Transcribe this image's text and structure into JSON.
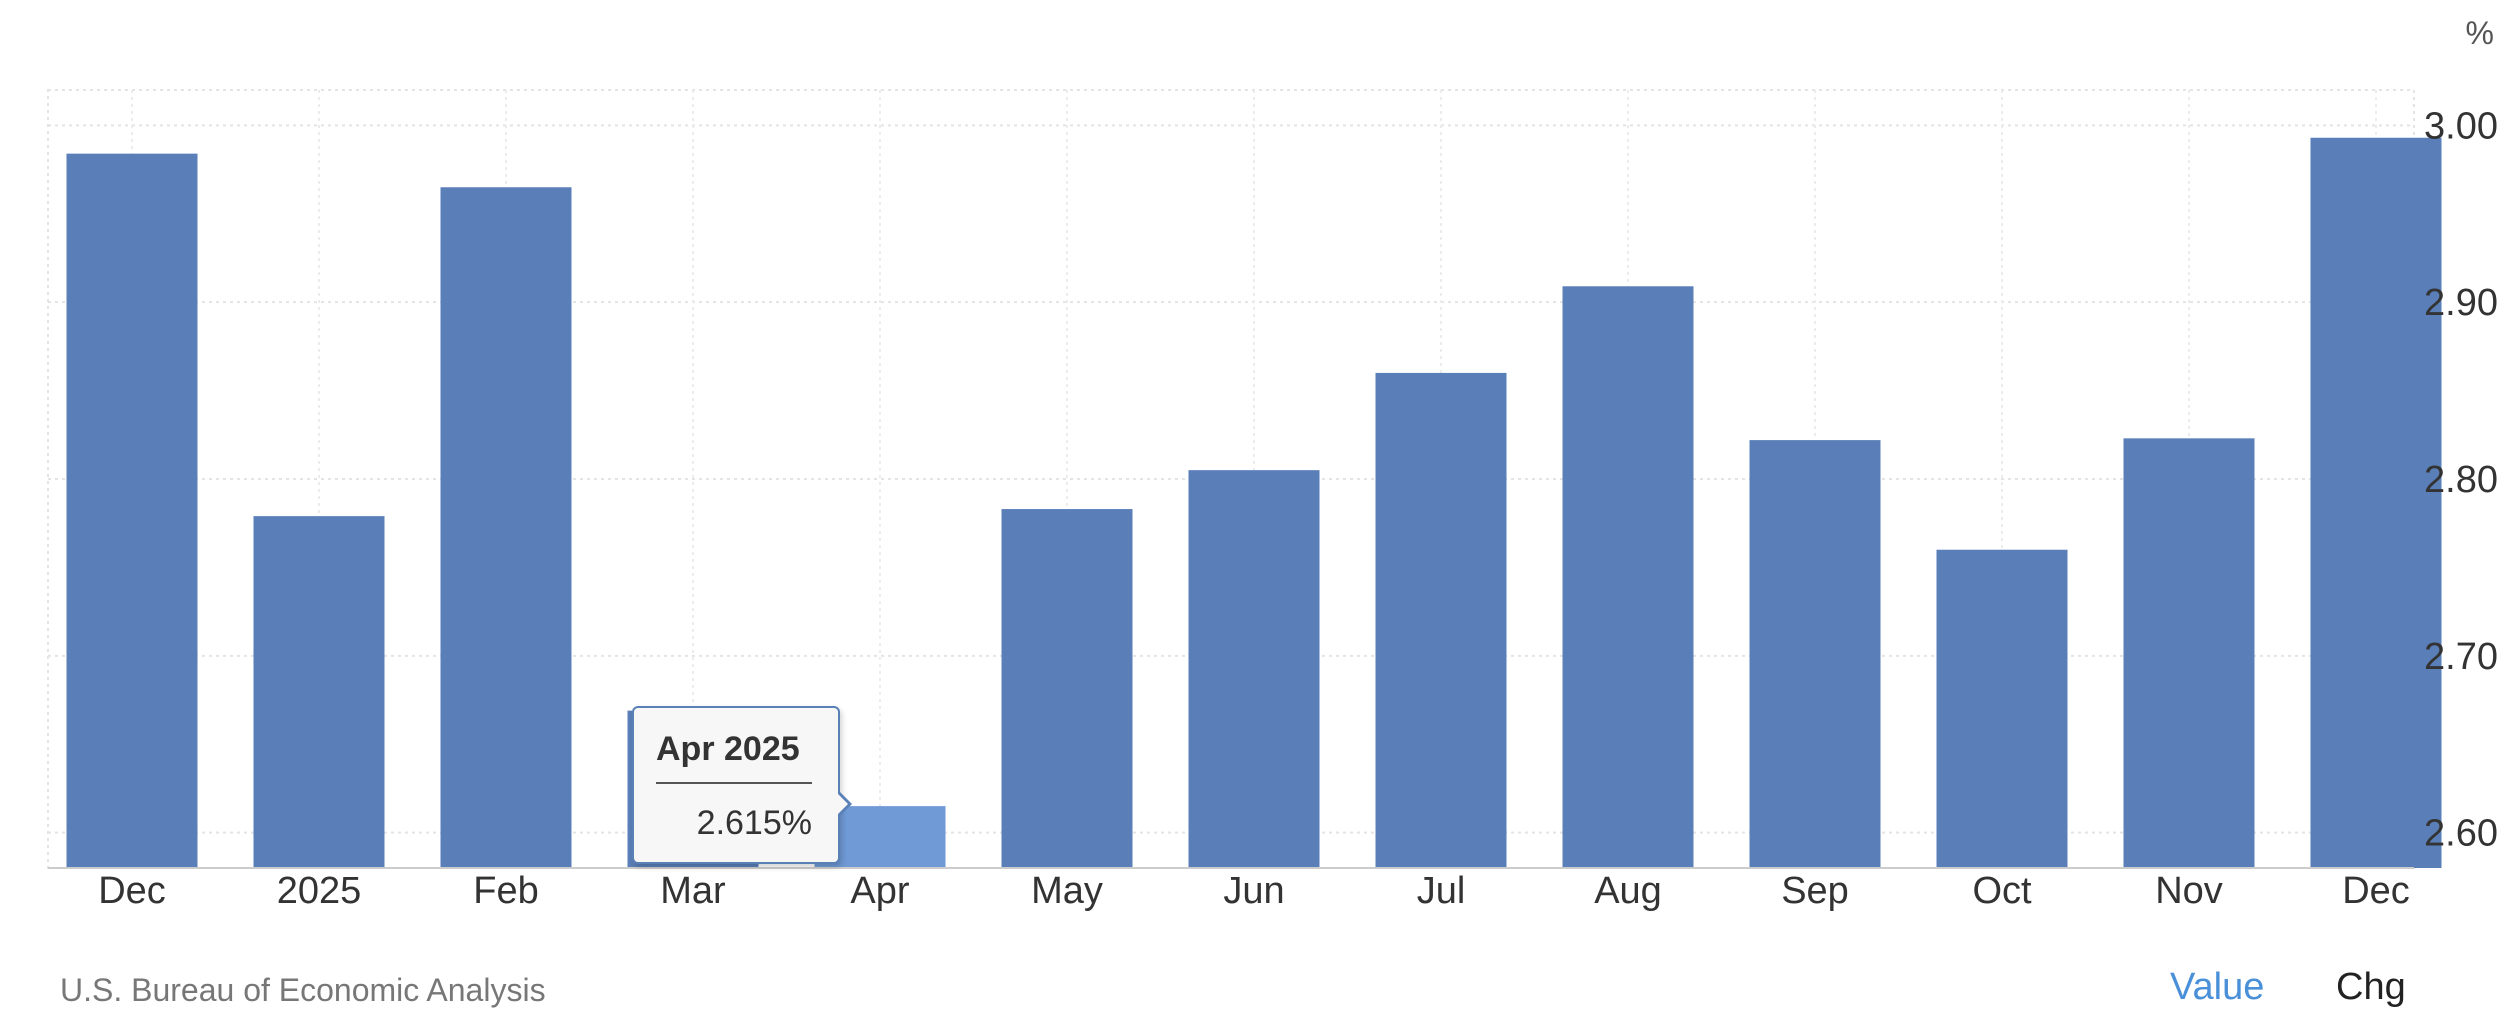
{
  "chart_data": {
    "type": "bar",
    "categories": [
      "Dec",
      "2025",
      "Feb",
      "Mar",
      "Apr",
      "May",
      "Jun",
      "Jul",
      "Aug",
      "Sep",
      "Oct",
      "Nov",
      "Dec"
    ],
    "values": [
      2.984,
      2.779,
      2.965,
      2.669,
      2.615,
      2.783,
      2.805,
      2.86,
      2.909,
      2.822,
      2.76,
      2.823,
      2.993
    ],
    "ylim": [
      2.58,
      3.02
    ],
    "yticks": [
      "3.00",
      "2.90",
      "2.80",
      "2.70",
      "2.60"
    ],
    "ytick_values": [
      3.0,
      2.9,
      2.8,
      2.7,
      2.6
    ],
    "unit": "%",
    "grid": true,
    "highlight_index": 4,
    "bar_color": "#5a7fb8",
    "highlight_color": "#6f9ad6"
  },
  "tooltip": {
    "title": "Apr 2025",
    "value": "2.615%"
  },
  "footer": {
    "source": "U.S. Bureau of Economic Analysis",
    "value_label": "Value",
    "chg_label": "Chg"
  },
  "colors": {
    "value_toggle": "#4a90d9",
    "chg_toggle": "#222222"
  }
}
